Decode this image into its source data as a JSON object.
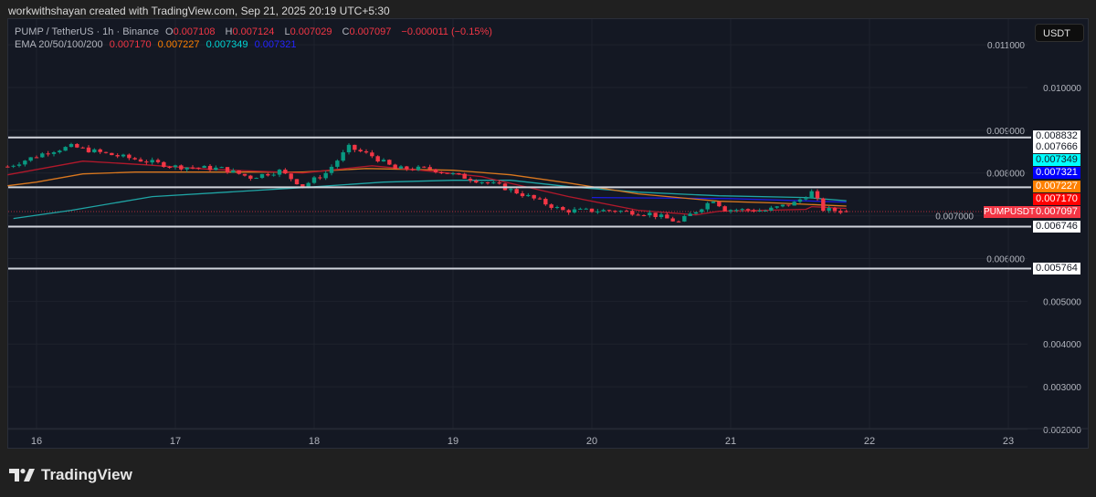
{
  "credit": "workwithshayan created with TradingView.com, Sep 21, 2025 20:19 UTC+5:30",
  "legend": {
    "symbol": "PUMP / TetherUS · 1h · Binance",
    "o_label": "O",
    "o": "0.007108",
    "h_label": "H",
    "h": "0.007124",
    "l_label": "L",
    "l": "0.007029",
    "c_label": "C",
    "c": "0.007097",
    "change": "−0.000011 (−0.15%)",
    "ema_label": "EMA 20/50/100/200",
    "ema20": "0.007170",
    "ema50": "0.007227",
    "ema100": "0.007349",
    "ema200": "0.007321"
  },
  "currency_button": "USDT",
  "symbol_tag": "PUMPUSDT",
  "price_labels": [
    {
      "text": "0.008832",
      "bg": "#ffffff",
      "fg": "#131722"
    },
    {
      "text": "0.007666",
      "bg": "#ffffff",
      "fg": "#131722"
    },
    {
      "text": "0.007349",
      "bg": "#00ffff",
      "fg": "#131722"
    },
    {
      "text": "0.007321",
      "bg": "#0000ff",
      "fg": "#ffffff"
    },
    {
      "text": "0.007227",
      "bg": "#ff8000",
      "fg": "#ffffff"
    },
    {
      "text": "0.007170",
      "bg": "#ff0000",
      "fg": "#ffffff"
    },
    {
      "text": "0.007097",
      "bg": "#f23645",
      "fg": "#ffffff"
    },
    {
      "text": "0.006746",
      "bg": "#ffffff",
      "fg": "#131722"
    },
    {
      "text": "0.005764",
      "bg": "#ffffff",
      "fg": "#131722"
    }
  ],
  "logo_text": "TradingView",
  "chart_data": {
    "type": "candlestick",
    "interval": "1h",
    "ylim": [
      0.00202,
      0.0116
    ],
    "y_ticks": [
      "0.011000",
      "0.010000",
      "0.009000",
      "0.008000",
      "0.007000",
      "0.006000",
      "0.005000",
      "0.004000",
      "0.003000",
      "0.002000"
    ],
    "x_ticks": [
      "16",
      "17",
      "18",
      "19",
      "20",
      "21",
      "22",
      "23"
    ],
    "grid": true,
    "colors": {
      "up": "#089981",
      "down": "#f23645",
      "ema20": "#b2182b",
      "ema50": "#d9771e",
      "ema100": "#1fa5a5",
      "ema200": "#1a1adf",
      "level": "#d1d4dc"
    },
    "horizontal_levels": [
      0.008832,
      0.007666,
      0.006746,
      0.005764
    ],
    "last_price": 0.007097,
    "close_path": [
      [
        "09-15 19:00",
        0.00815
      ],
      [
        "09-15 23:00",
        0.00835
      ],
      [
        "09-16 02:00",
        0.0085
      ],
      [
        "09-16 06:00",
        0.00862
      ],
      [
        "09-16 12:00",
        0.00845
      ],
      [
        "09-16 18:00",
        0.0083
      ],
      [
        "09-17 00:00",
        0.00815
      ],
      [
        "09-17 08:00",
        0.0081
      ],
      [
        "09-17 13:00",
        0.0079
      ],
      [
        "09-17 18:00",
        0.00805
      ],
      [
        "09-17 22:00",
        0.0077
      ],
      [
        "09-18 02:00",
        0.008
      ],
      [
        "09-18 06:00",
        0.0086
      ],
      [
        "09-18 10:00",
        0.0084
      ],
      [
        "09-18 14:00",
        0.0081
      ],
      [
        "09-18 20:00",
        0.0081
      ],
      [
        "09-19 02:00",
        0.0079
      ],
      [
        "09-19 08:00",
        0.0077
      ],
      [
        "09-19 13:00",
        0.00745
      ],
      [
        "09-19 19:00",
        0.00712
      ],
      [
        "09-20 04:00",
        0.00712
      ],
      [
        "09-20 10:00",
        0.00705
      ],
      [
        "09-20 15:00",
        0.00685
      ],
      [
        "09-20 21:00",
        0.00738
      ],
      [
        "09-20 23:00",
        0.00715
      ],
      [
        "09-21 06:00",
        0.00712
      ],
      [
        "09-21 11:00",
        0.0073
      ],
      [
        "09-21 14:00",
        0.00755
      ],
      [
        "09-21 16:00",
        0.00715
      ],
      [
        "09-21 20:00",
        0.007097
      ]
    ],
    "ema20": [
      [
        "09-15 19:00",
        0.007957
      ],
      [
        "09-16 08:00",
        0.008277
      ],
      [
        "09-16 19:00",
        0.008191
      ],
      [
        "09-17 06:00",
        0.008085
      ],
      [
        "09-17 22:00",
        0.008
      ],
      [
        "09-18 10:00",
        0.00817
      ],
      [
        "09-18 20:00",
        0.008043
      ],
      [
        "09-19 05:00",
        0.007915
      ],
      [
        "09-19 07:00",
        0.007851
      ],
      [
        "09-19 20:00",
        0.007447
      ],
      [
        "09-20 08:00",
        0.007128
      ],
      [
        "09-20 18:00",
        0.007021
      ],
      [
        "09-20 22:00",
        0.007106
      ],
      [
        "09-21 13:00",
        0.007149
      ],
      [
        "09-21 14:00",
        0.007213
      ],
      [
        "09-21 20:00",
        0.00717
      ]
    ],
    "ema50": [
      [
        "09-15 19:00",
        0.007702
      ],
      [
        "09-16 00:00",
        0.007787
      ],
      [
        "09-16 08:00",
        0.007979
      ],
      [
        "09-16 17:00",
        0.008021
      ],
      [
        "09-17 22:00",
        0.008021
      ],
      [
        "09-18 09:00",
        0.008106
      ],
      [
        "09-19 00:00",
        0.008064
      ],
      [
        "09-19 10:00",
        0.007957
      ],
      [
        "09-19 20:00",
        0.007766
      ],
      [
        "09-20 08:00",
        0.007511
      ],
      [
        "09-20 22:00",
        0.00734
      ],
      [
        "09-21 08:00",
        0.007298
      ],
      [
        "09-21 20:00",
        0.007227
      ]
    ],
    "ema100": [
      [
        "09-15 20:00",
        0.006936
      ],
      [
        "09-16 06:00",
        0.007128
      ],
      [
        "09-16 20:00",
        0.007447
      ],
      [
        "09-17 22:00",
        0.00766
      ],
      [
        "09-18 12:00",
        0.007787
      ],
      [
        "09-19 00:00",
        0.00783
      ],
      [
        "09-19 10:00",
        0.00783
      ],
      [
        "09-19 20:00",
        0.007681
      ],
      [
        "09-20 08:00",
        0.007553
      ],
      [
        "09-20 22:00",
        0.007468
      ],
      [
        "09-21 13:00",
        0.007426
      ],
      [
        "09-21 20:00",
        0.007349
      ]
    ],
    "ema200": [
      [
        "09-20 00:00",
        0.007426
      ],
      [
        "09-21 00:00",
        0.0074
      ],
      [
        "09-21 20:00",
        0.007321
      ]
    ]
  }
}
